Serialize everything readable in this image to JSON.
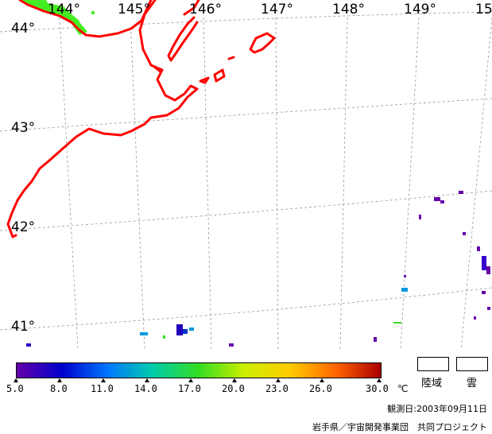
{
  "map": {
    "longitude_labels": [
      "144°",
      "145°",
      "146°",
      "147°",
      "148°",
      "149°",
      "15"
    ],
    "latitude_labels": [
      "44°",
      "43°",
      "42°",
      "41°"
    ],
    "coastline_color": "#ff0000",
    "grid_color": "#999999",
    "land_fill_color": "#44ee22"
  },
  "colorbar": {
    "unit": "℃",
    "tick_labels": [
      "5.0",
      "8.0",
      "11.0",
      "14.0",
      "17.0",
      "20.0",
      "23.0",
      "26.0",
      "30.0"
    ],
    "gradient_colors": [
      "#6600aa",
      "#0000cc",
      "#0077ff",
      "#00ccaa",
      "#33dd22",
      "#ccee00",
      "#ffcc00",
      "#ff6600",
      "#aa0000"
    ]
  },
  "legend": {
    "land_label": "陸域",
    "cloud_label": "雲"
  },
  "footer": {
    "observation_date": "観測日:2003年09月11日",
    "credit": "岩手県／宇宙開発事業団　共同プロジェクト"
  }
}
